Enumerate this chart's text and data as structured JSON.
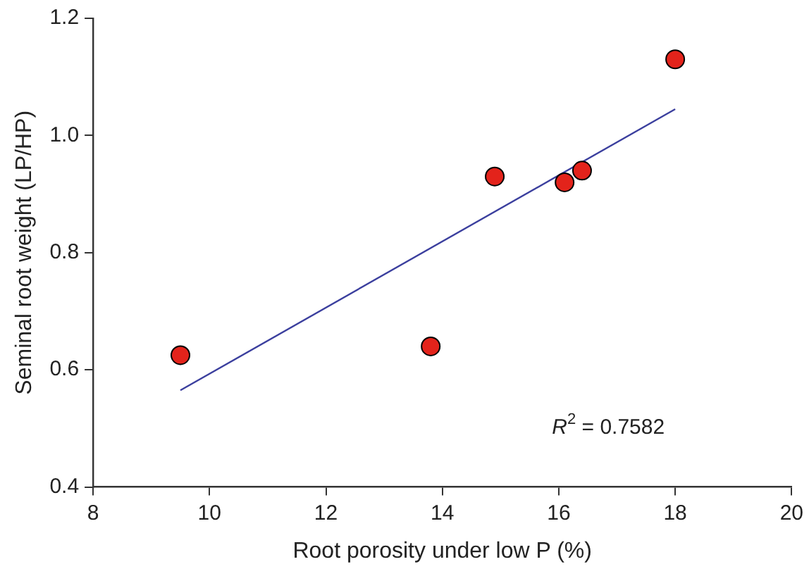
{
  "chart_data": {
    "type": "scatter",
    "xlabel": "Root porosity under low P (%)",
    "ylabel": "Seminal root weight (LP/HP)",
    "xlim": [
      8,
      20
    ],
    "xticks": [
      8,
      10,
      12,
      14,
      16,
      18,
      20
    ],
    "ylim": [
      0.4,
      1.2
    ],
    "yticks": [
      0.4,
      0.6,
      0.8,
      {
        "value": 1,
        "label": "1.0"
      },
      1.2
    ],
    "grid": false,
    "legend": false,
    "marker": "circle",
    "series": [
      {
        "color": "#e3231b",
        "x": [
          9.5,
          13.8,
          14.9,
          16.1,
          16.4,
          18.0
        ],
        "values": [
          0.625,
          0.64,
          0.93,
          0.92,
          0.94,
          1.13
        ]
      },
      {
        "type": "line",
        "color": "#3b3f9e",
        "marker": "none",
        "line_style": "solid",
        "x": [
          9.5,
          18.0
        ],
        "values": [
          0.565,
          1.045
        ]
      }
    ],
    "annotations": [
      "R$^{2}$ = 0.7582"
    ]
  }
}
